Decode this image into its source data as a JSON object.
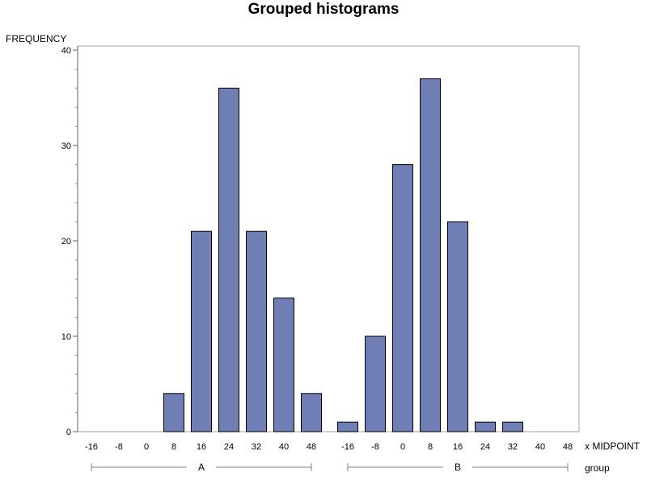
{
  "chart_data": {
    "type": "bar",
    "title": "Grouped histograms",
    "ylabel": "FREQUENCY",
    "xlabel": "x MIDPOINT",
    "group_label": "group",
    "ylim": [
      0,
      40
    ],
    "y_ticks": [
      0,
      10,
      20,
      30,
      40
    ],
    "bar_color": "#6f7eb5",
    "groups": [
      {
        "name": "A",
        "categories": [
          "-16",
          "-8",
          "0",
          "8",
          "16",
          "24",
          "32",
          "40",
          "48"
        ],
        "values": [
          0,
          0,
          0,
          4,
          21,
          36,
          21,
          14,
          4
        ]
      },
      {
        "name": "B",
        "categories": [
          "-16",
          "-8",
          "0",
          "8",
          "16",
          "24",
          "32",
          "40",
          "48"
        ],
        "values": [
          1,
          10,
          28,
          37,
          22,
          1,
          1,
          0,
          0
        ]
      }
    ]
  }
}
